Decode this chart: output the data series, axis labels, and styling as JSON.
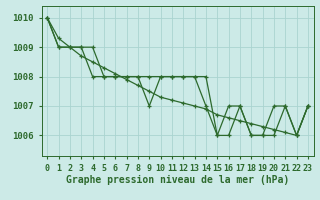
{
  "title": "Graphe pression niveau de la mer (hPa)",
  "bg_color": "#cceae7",
  "grid_color": "#aad4d0",
  "line_color": "#2d6a2d",
  "xlim": [
    -0.5,
    23.5
  ],
  "ylim": [
    1005.3,
    1010.4
  ],
  "yticks": [
    1006,
    1007,
    1008,
    1009,
    1010
  ],
  "xticks": [
    0,
    1,
    2,
    3,
    4,
    5,
    6,
    7,
    8,
    9,
    10,
    11,
    12,
    13,
    14,
    15,
    16,
    17,
    18,
    19,
    20,
    21,
    22,
    23
  ],
  "series": [
    [
      1010.0,
      1009.0,
      1009.0,
      1009.0,
      1008.0,
      1008.0,
      1008.0,
      1008.0,
      1008.0,
      1008.0,
      1008.0,
      1008.0,
      1008.0,
      1008.0,
      1008.0,
      1006.0,
      1007.0,
      1007.0,
      1006.0,
      1006.0,
      1006.0,
      1007.0,
      1006.0,
      1007.0
    ],
    [
      1010.0,
      1009.0,
      1009.0,
      1009.0,
      1009.0,
      1008.0,
      1008.0,
      1008.0,
      1008.0,
      1007.0,
      1008.0,
      1008.0,
      1008.0,
      1008.0,
      1007.0,
      1006.0,
      1006.0,
      1007.0,
      1006.0,
      1006.0,
      1007.0,
      1007.0,
      1006.0,
      1007.0
    ],
    [
      1010.0,
      1009.3,
      1009.0,
      1008.7,
      1008.5,
      1008.3,
      1008.1,
      1007.9,
      1007.7,
      1007.5,
      1007.3,
      1007.2,
      1007.1,
      1007.0,
      1006.9,
      1006.7,
      1006.6,
      1006.5,
      1006.4,
      1006.3,
      1006.2,
      1006.1,
      1006.0,
      1007.0
    ]
  ],
  "title_fontsize": 7,
  "tick_fontsize": 6,
  "ytick_fontsize": 6.5
}
